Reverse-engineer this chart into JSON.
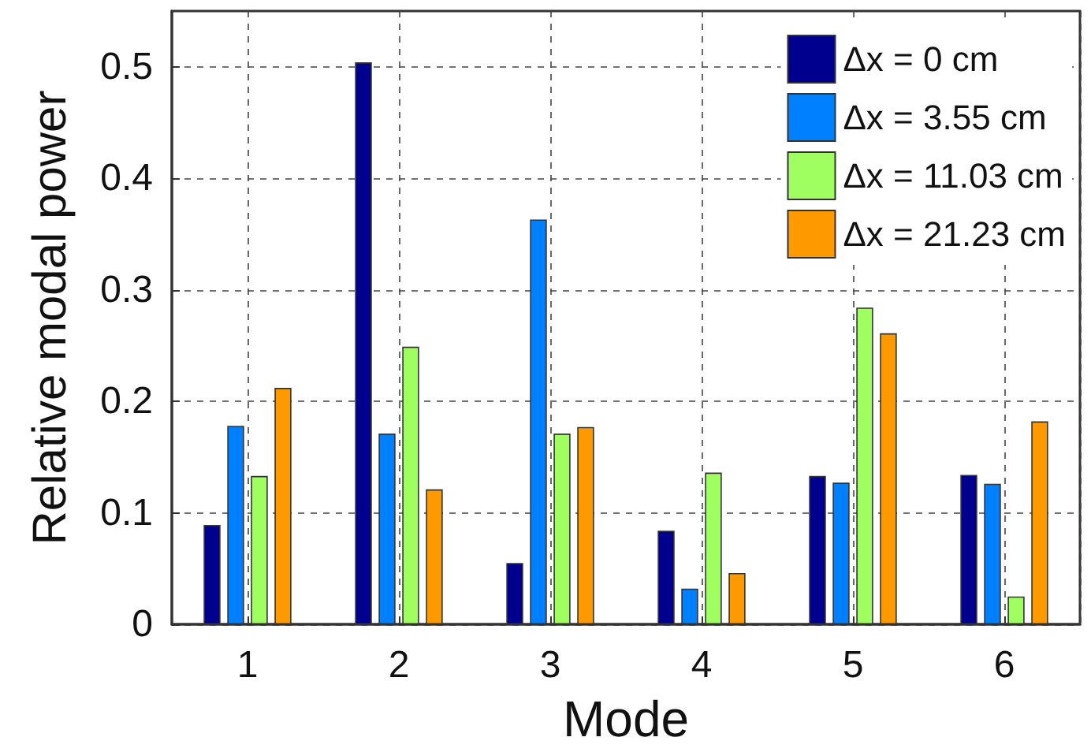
{
  "chart_data": {
    "type": "bar",
    "xlabel": "Mode",
    "ylabel": "Relative modal power",
    "categories": [
      "1",
      "2",
      "3",
      "4",
      "5",
      "6"
    ],
    "series": [
      {
        "name": "Δx = 0 cm",
        "color": "#00008f",
        "values": [
          0.089,
          0.504,
          0.055,
          0.084,
          0.133,
          0.134
        ]
      },
      {
        "name": "Δx = 3.55 cm",
        "color": "#0080ff",
        "values": [
          0.178,
          0.171,
          0.363,
          0.032,
          0.127,
          0.126
        ]
      },
      {
        "name": "Δx = 11.03 cm",
        "color": "#9fff60",
        "values": [
          0.133,
          0.249,
          0.171,
          0.136,
          0.284,
          0.025
        ]
      },
      {
        "name": "Δx = 21.23 cm",
        "color": "#ff9900",
        "values": [
          0.212,
          0.121,
          0.177,
          0.046,
          0.261,
          0.182
        ]
      }
    ],
    "ylim": [
      0,
      0.55
    ],
    "yticks": [
      0,
      0.1,
      0.2,
      0.3,
      0.4,
      0.5
    ],
    "grid": true,
    "legend": "top right"
  }
}
